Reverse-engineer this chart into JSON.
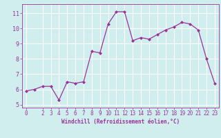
{
  "x": [
    0,
    1,
    2,
    3,
    4,
    5,
    6,
    7,
    8,
    9,
    10,
    11,
    12,
    13,
    14,
    15,
    16,
    17,
    18,
    19,
    20,
    21,
    22,
    23
  ],
  "y": [
    5.9,
    6.0,
    6.2,
    6.2,
    5.3,
    6.5,
    6.4,
    6.5,
    8.5,
    8.4,
    10.3,
    11.1,
    11.1,
    9.2,
    9.4,
    9.3,
    9.6,
    9.9,
    10.1,
    10.4,
    10.3,
    9.9,
    8.0,
    6.4
  ],
  "line_color": "#993399",
  "marker_color": "#993399",
  "bg_color": "#d0eeee",
  "grid_color": "#ffffff",
  "xlabel": "Windchill (Refroidissement éolien,°C)",
  "xlabel_color": "#993399",
  "tick_color": "#993399",
  "xlim": [
    -0.5,
    23.5
  ],
  "ylim": [
    4.8,
    11.6
  ],
  "yticks": [
    5,
    6,
    7,
    8,
    9,
    10,
    11
  ],
  "xticks": [
    0,
    2,
    3,
    4,
    5,
    6,
    7,
    8,
    9,
    10,
    11,
    12,
    13,
    14,
    15,
    16,
    17,
    18,
    19,
    20,
    21,
    22,
    23
  ],
  "xlabel_fontsize": 5.5,
  "tick_fontsize": 5.5,
  "ytick_fontsize": 6.0
}
